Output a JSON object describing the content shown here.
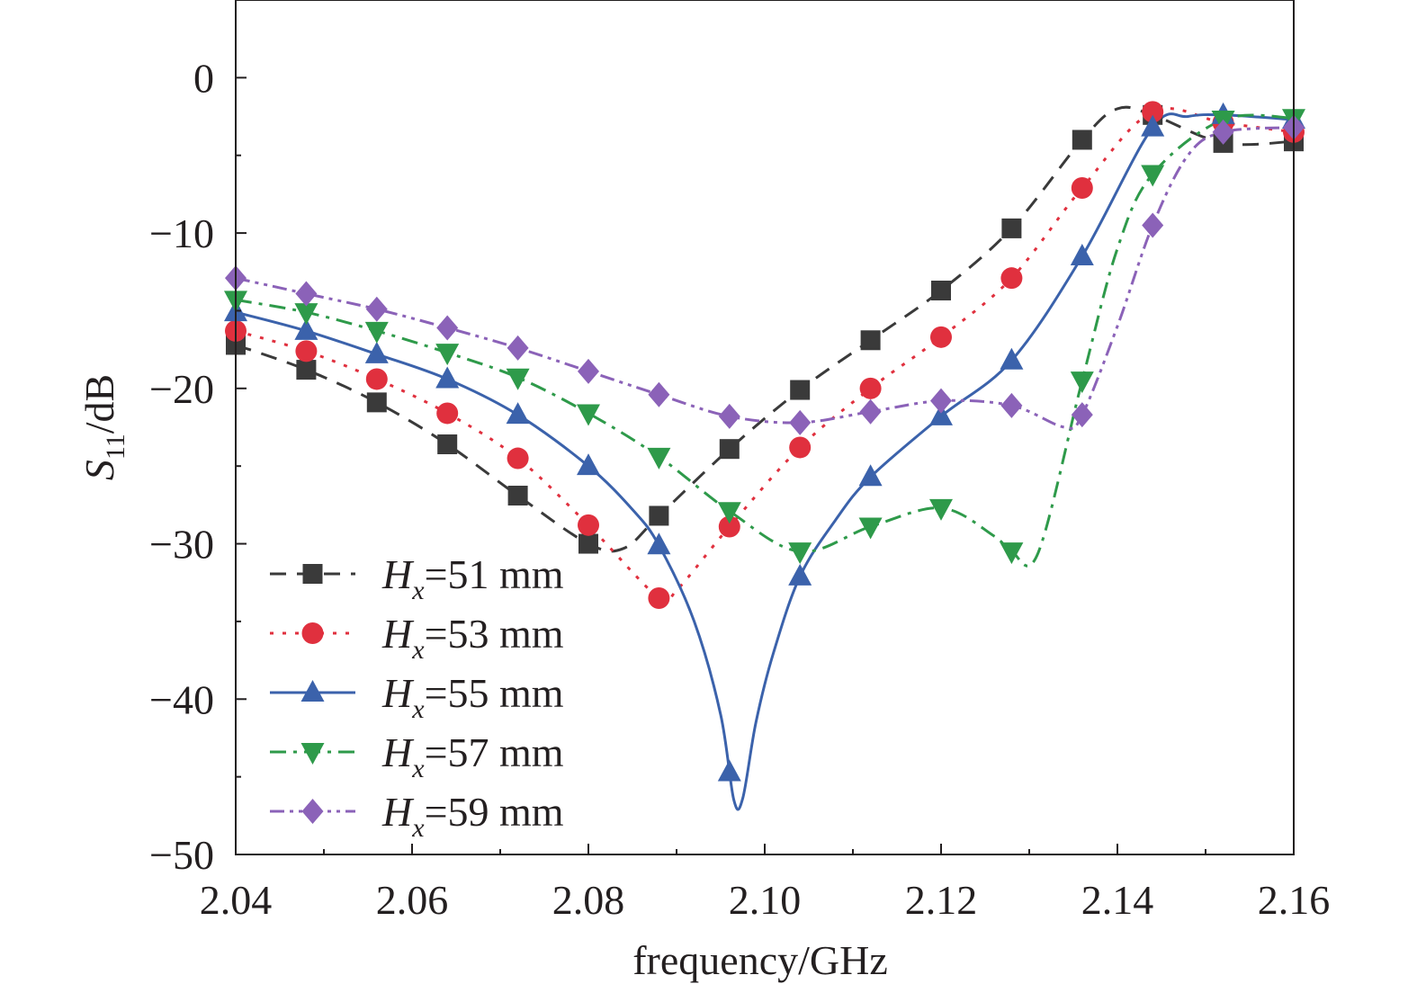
{
  "chart_data": {
    "type": "line",
    "xlabel": "frequency/GHz",
    "ylabel": {
      "main": "S",
      "sub": "11",
      "suffix": "/dB"
    },
    "xlim": [
      2.04,
      2.16
    ],
    "ylim": [
      -50,
      5
    ],
    "xticks": [
      "2.04",
      "2.06",
      "2.08",
      "2.10",
      "2.12",
      "2.14",
      "2.16"
    ],
    "yticks": [
      "0",
      "−10",
      "−20",
      "−30",
      "−40",
      "−50"
    ],
    "legend_position": "bottom-left",
    "series": [
      {
        "label_main": "H",
        "label_sub": "x",
        "label_value": "=51 mm",
        "color": "#3a3a3a",
        "marker": "square",
        "dash": "18,12",
        "points": [
          [
            2.04,
            -17.2
          ],
          [
            2.048,
            -18.8
          ],
          [
            2.056,
            -20.9
          ],
          [
            2.064,
            -23.6
          ],
          [
            2.072,
            -26.9
          ],
          [
            2.08,
            -30.0
          ],
          [
            2.088,
            -28.2
          ],
          [
            2.096,
            -23.9
          ],
          [
            2.104,
            -20.1
          ],
          [
            2.112,
            -16.9
          ],
          [
            2.12,
            -13.7
          ],
          [
            2.128,
            -9.7
          ],
          [
            2.136,
            -4.0
          ],
          [
            2.144,
            -2.4
          ],
          [
            2.152,
            -4.2
          ],
          [
            2.16,
            -4.1
          ]
        ],
        "curve": [
          [
            2.04,
            -17.2
          ],
          [
            2.048,
            -18.8
          ],
          [
            2.056,
            -20.9
          ],
          [
            2.064,
            -23.6
          ],
          [
            2.072,
            -26.9
          ],
          [
            2.08,
            -30.0
          ],
          [
            2.084,
            -30.3
          ],
          [
            2.088,
            -28.2
          ],
          [
            2.096,
            -23.9
          ],
          [
            2.104,
            -20.1
          ],
          [
            2.112,
            -16.9
          ],
          [
            2.12,
            -13.7
          ],
          [
            2.128,
            -9.7
          ],
          [
            2.136,
            -4.0
          ],
          [
            2.14,
            -2.0
          ],
          [
            2.144,
            -2.4
          ],
          [
            2.152,
            -4.2
          ],
          [
            2.16,
            -4.1
          ]
        ]
      },
      {
        "label_main": "H",
        "label_sub": "x",
        "label_value": "=53 mm",
        "color": "#e0303e",
        "marker": "circle",
        "dash": "4,10",
        "points": [
          [
            2.04,
            -16.3
          ],
          [
            2.048,
            -17.6
          ],
          [
            2.056,
            -19.4
          ],
          [
            2.064,
            -21.6
          ],
          [
            2.072,
            -24.5
          ],
          [
            2.08,
            -28.8
          ],
          [
            2.088,
            -33.5
          ],
          [
            2.096,
            -28.9
          ],
          [
            2.104,
            -23.8
          ],
          [
            2.112,
            -20.0
          ],
          [
            2.12,
            -16.7
          ],
          [
            2.128,
            -12.9
          ],
          [
            2.136,
            -7.1
          ],
          [
            2.144,
            -2.2
          ],
          [
            2.152,
            -2.9
          ],
          [
            2.16,
            -3.5
          ]
        ],
        "curve": [
          [
            2.04,
            -16.3
          ],
          [
            2.048,
            -17.6
          ],
          [
            2.056,
            -19.4
          ],
          [
            2.064,
            -21.6
          ],
          [
            2.072,
            -24.5
          ],
          [
            2.08,
            -28.8
          ],
          [
            2.088,
            -33.5
          ],
          [
            2.09,
            -33.0
          ],
          [
            2.096,
            -28.9
          ],
          [
            2.104,
            -23.8
          ],
          [
            2.112,
            -20.0
          ],
          [
            2.12,
            -16.7
          ],
          [
            2.128,
            -12.9
          ],
          [
            2.136,
            -7.1
          ],
          [
            2.144,
            -2.2
          ],
          [
            2.152,
            -2.9
          ],
          [
            2.16,
            -3.5
          ]
        ]
      },
      {
        "label_main": "H",
        "label_sub": "x",
        "label_value": "=55 mm",
        "color": "#3b62ab",
        "marker": "triangle-up",
        "dash": "",
        "points": [
          [
            2.04,
            -15.1
          ],
          [
            2.048,
            -16.3
          ],
          [
            2.056,
            -17.8
          ],
          [
            2.064,
            -19.4
          ],
          [
            2.072,
            -21.7
          ],
          [
            2.08,
            -25.0
          ],
          [
            2.088,
            -30.1
          ],
          [
            2.096,
            -44.7
          ],
          [
            2.104,
            -32.1
          ],
          [
            2.112,
            -25.7
          ],
          [
            2.12,
            -21.8
          ],
          [
            2.128,
            -18.2
          ],
          [
            2.136,
            -11.5
          ],
          [
            2.144,
            -3.2
          ],
          [
            2.152,
            -2.4
          ],
          [
            2.16,
            -2.7
          ]
        ],
        "curve": [
          [
            2.04,
            -15.1
          ],
          [
            2.048,
            -16.3
          ],
          [
            2.056,
            -17.8
          ],
          [
            2.064,
            -19.4
          ],
          [
            2.072,
            -21.7
          ],
          [
            2.08,
            -25.0
          ],
          [
            2.085,
            -27.8
          ],
          [
            2.088,
            -30.1
          ],
          [
            2.092,
            -35.0
          ],
          [
            2.095,
            -41.0
          ],
          [
            2.0965,
            -46.5
          ],
          [
            2.0975,
            -46.4
          ],
          [
            2.099,
            -41.5
          ],
          [
            2.101,
            -37.0
          ],
          [
            2.104,
            -32.1
          ],
          [
            2.108,
            -28.5
          ],
          [
            2.112,
            -25.7
          ],
          [
            2.12,
            -21.8
          ],
          [
            2.128,
            -18.2
          ],
          [
            2.136,
            -11.5
          ],
          [
            2.144,
            -3.2
          ],
          [
            2.148,
            -2.5
          ],
          [
            2.152,
            -2.4
          ],
          [
            2.16,
            -2.7
          ]
        ]
      },
      {
        "label_main": "H",
        "label_sub": "x",
        "label_value": "=57 mm",
        "color": "#2e9a4a",
        "marker": "triangle-down",
        "dash": "18,8,4,8",
        "points": [
          [
            2.04,
            -14.3
          ],
          [
            2.048,
            -15.1
          ],
          [
            2.056,
            -16.3
          ],
          [
            2.064,
            -17.7
          ],
          [
            2.072,
            -19.3
          ],
          [
            2.08,
            -21.6
          ],
          [
            2.088,
            -24.4
          ],
          [
            2.096,
            -27.9
          ],
          [
            2.104,
            -30.5
          ],
          [
            2.112,
            -28.9
          ],
          [
            2.12,
            -27.7
          ],
          [
            2.128,
            -30.5
          ],
          [
            2.136,
            -19.5
          ],
          [
            2.144,
            -6.2
          ],
          [
            2.152,
            -2.7
          ],
          [
            2.16,
            -2.6
          ]
        ],
        "curve": [
          [
            2.04,
            -14.3
          ],
          [
            2.048,
            -15.1
          ],
          [
            2.056,
            -16.3
          ],
          [
            2.064,
            -17.7
          ],
          [
            2.072,
            -19.3
          ],
          [
            2.08,
            -21.6
          ],
          [
            2.088,
            -24.4
          ],
          [
            2.096,
            -27.9
          ],
          [
            2.104,
            -30.5
          ],
          [
            2.112,
            -28.9
          ],
          [
            2.12,
            -27.7
          ],
          [
            2.126,
            -29.5
          ],
          [
            2.128,
            -30.5
          ],
          [
            2.131,
            -30.6
          ],
          [
            2.136,
            -19.5
          ],
          [
            2.14,
            -11.0
          ],
          [
            2.144,
            -6.2
          ],
          [
            2.152,
            -2.7
          ],
          [
            2.16,
            -2.6
          ]
        ]
      },
      {
        "label_main": "H",
        "label_sub": "x",
        "label_value": "=59 mm",
        "color": "#8b62b8",
        "marker": "diamond",
        "dash": "16,6,4,6,4,6",
        "points": [
          [
            2.04,
            -12.9
          ],
          [
            2.048,
            -13.9
          ],
          [
            2.056,
            -14.9
          ],
          [
            2.064,
            -16.1
          ],
          [
            2.072,
            -17.4
          ],
          [
            2.08,
            -18.9
          ],
          [
            2.088,
            -20.4
          ],
          [
            2.096,
            -21.8
          ],
          [
            2.104,
            -22.2
          ],
          [
            2.112,
            -21.5
          ],
          [
            2.12,
            -20.8
          ],
          [
            2.128,
            -21.1
          ],
          [
            2.136,
            -21.7
          ],
          [
            2.144,
            -9.5
          ],
          [
            2.152,
            -3.5
          ],
          [
            2.16,
            -3.2
          ]
        ],
        "curve": [
          [
            2.04,
            -12.9
          ],
          [
            2.048,
            -13.9
          ],
          [
            2.056,
            -14.9
          ],
          [
            2.064,
            -16.1
          ],
          [
            2.072,
            -17.4
          ],
          [
            2.08,
            -18.9
          ],
          [
            2.088,
            -20.4
          ],
          [
            2.096,
            -21.8
          ],
          [
            2.104,
            -22.2
          ],
          [
            2.112,
            -21.5
          ],
          [
            2.12,
            -20.8
          ],
          [
            2.128,
            -21.1
          ],
          [
            2.134,
            -22.5
          ],
          [
            2.136,
            -21.7
          ],
          [
            2.14,
            -16.0
          ],
          [
            2.144,
            -9.5
          ],
          [
            2.148,
            -5.0
          ],
          [
            2.152,
            -3.5
          ],
          [
            2.16,
            -3.2
          ]
        ]
      }
    ]
  }
}
